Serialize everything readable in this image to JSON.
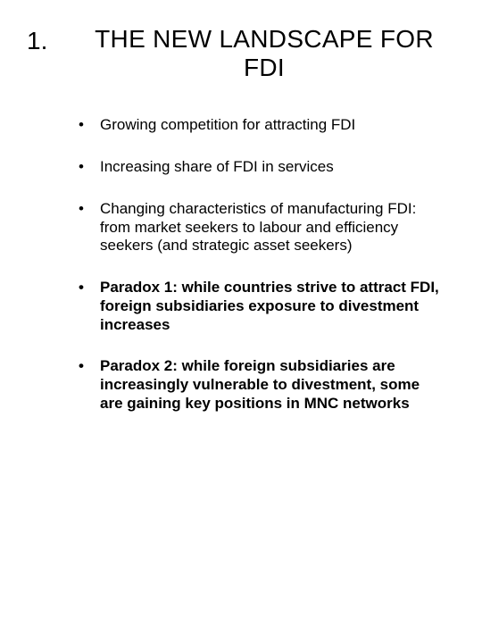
{
  "slide": {
    "number": "1.",
    "title": "THE NEW LANDSCAPE FOR FDI",
    "bullets": [
      {
        "text": "Growing competition for attracting FDI",
        "bold": false
      },
      {
        "text": "Increasing share of FDI in services",
        "bold": false
      },
      {
        "text": "Changing characteristics of manufacturing FDI: from market seekers to labour and efficiency seekers (and strategic asset seekers)",
        "bold": false
      },
      {
        "text": "Paradox 1: while countries strive to attract FDI, foreign subsidiaries exposure to divestment increases",
        "bold": true
      },
      {
        "text": "Paradox 2: while foreign subsidiaries are increasingly vulnerable to divestment, some are gaining key positions in MNC networks",
        "bold": true
      }
    ]
  },
  "style": {
    "background_color": "#ffffff",
    "text_color": "#000000",
    "title_fontsize": 28,
    "number_fontsize": 28,
    "bullet_fontsize": 17,
    "bullet_marker": "•",
    "font_family": "Arial"
  }
}
